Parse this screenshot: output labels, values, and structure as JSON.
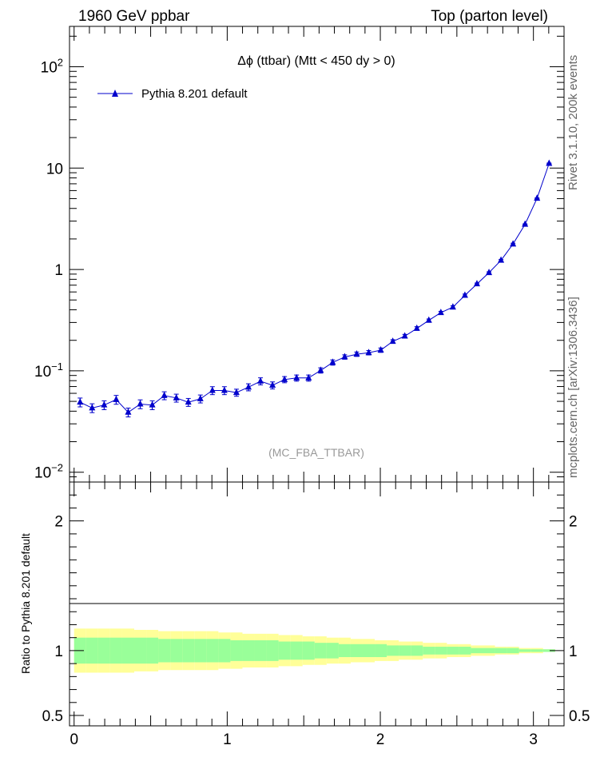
{
  "header": {
    "left": "1960 GeV ppbar",
    "right": "Top (parton level)"
  },
  "side_labels": {
    "rivet": "Rivet 3.1.10,  200k events",
    "mcplots": "mcplots.cern.ch [arXiv:1306.3436]"
  },
  "colors": {
    "series": "#0000cc",
    "band_inner": "#99ff99",
    "band_outer": "#ffff99",
    "watermark": "#999999"
  },
  "chart_data": [
    {
      "type": "line",
      "title": "Δϕ (ttbar) (Mtt < 450 dy > 0)",
      "watermark": "(MC_FBA_TTBAR)",
      "xlim": [
        -0.03,
        3.2
      ],
      "ylim": [
        0.008,
        250
      ],
      "yscale": "log",
      "ytick_labels": [
        "10^-2",
        "10^-1",
        "1",
        "10",
        "10^2"
      ],
      "legend": {
        "placement": "top-left"
      },
      "series": [
        {
          "name": "Pythia 8.201 default",
          "marker": "triangle",
          "x": [
            0.0393,
            0.1178,
            0.1963,
            0.2749,
            0.3534,
            0.432,
            0.5105,
            0.589,
            0.6676,
            0.7461,
            0.8247,
            0.9032,
            0.9817,
            1.0603,
            1.1388,
            1.2174,
            1.2959,
            1.3744,
            1.453,
            1.5315,
            1.6101,
            1.6886,
            1.7671,
            1.8457,
            1.9242,
            2.0028,
            2.0813,
            2.1598,
            2.2384,
            2.3169,
            2.3955,
            2.474,
            2.5525,
            2.6311,
            2.7096,
            2.7882,
            2.8667,
            2.9452,
            3.0238,
            3.1023
          ],
          "y": [
            0.049,
            0.043,
            0.046,
            0.052,
            0.039,
            0.047,
            0.046,
            0.057,
            0.054,
            0.049,
            0.053,
            0.064,
            0.064,
            0.061,
            0.069,
            0.079,
            0.072,
            0.082,
            0.085,
            0.085,
            0.101,
            0.121,
            0.137,
            0.146,
            0.151,
            0.16,
            0.195,
            0.22,
            0.262,
            0.315,
            0.375,
            0.425,
            0.555,
            0.72,
            0.93,
            1.23,
            1.78,
            2.79,
            5.03,
            11.1
          ],
          "yerr_rel": [
            0.1,
            0.1,
            0.1,
            0.1,
            0.1,
            0.1,
            0.1,
            0.09,
            0.09,
            0.09,
            0.09,
            0.09,
            0.09,
            0.08,
            0.08,
            0.08,
            0.08,
            0.07,
            0.07,
            0.07,
            0.06,
            0.06,
            0.05,
            0.05,
            0.05,
            0.05,
            0.04,
            0.04,
            0.04,
            0.03,
            0.03,
            0.03,
            0.03,
            0.02,
            0.02,
            0.02,
            0.02,
            0.01,
            0.01,
            0.01
          ]
        }
      ]
    },
    {
      "type": "area",
      "ylabel": "Ratio to Pythia 8.201 default",
      "ylim": [
        0.42,
        2.3
      ],
      "ytick_labels": [
        "0.5",
        "1",
        "2"
      ],
      "xtick_labels": [
        "0",
        "1",
        "2",
        "3"
      ],
      "xlim": [
        -0.03,
        3.2
      ],
      "reference": 1,
      "band_inner_rel": [
        0.1,
        0.1,
        0.1,
        0.1,
        0.1,
        0.1,
        0.1,
        0.09,
        0.09,
        0.09,
        0.09,
        0.09,
        0.09,
        0.08,
        0.08,
        0.08,
        0.08,
        0.07,
        0.07,
        0.07,
        0.06,
        0.06,
        0.05,
        0.05,
        0.05,
        0.05,
        0.04,
        0.04,
        0.04,
        0.03,
        0.03,
        0.03,
        0.03,
        0.02,
        0.02,
        0.02,
        0.02,
        0.01,
        0.01,
        0.01
      ],
      "band_outer_rel": [
        0.17,
        0.17,
        0.17,
        0.17,
        0.17,
        0.16,
        0.16,
        0.15,
        0.15,
        0.15,
        0.15,
        0.15,
        0.14,
        0.14,
        0.13,
        0.13,
        0.13,
        0.12,
        0.12,
        0.11,
        0.11,
        0.1,
        0.1,
        0.09,
        0.09,
        0.08,
        0.08,
        0.07,
        0.07,
        0.06,
        0.06,
        0.05,
        0.05,
        0.04,
        0.04,
        0.03,
        0.03,
        0.02,
        0.02,
        0.01
      ]
    }
  ]
}
